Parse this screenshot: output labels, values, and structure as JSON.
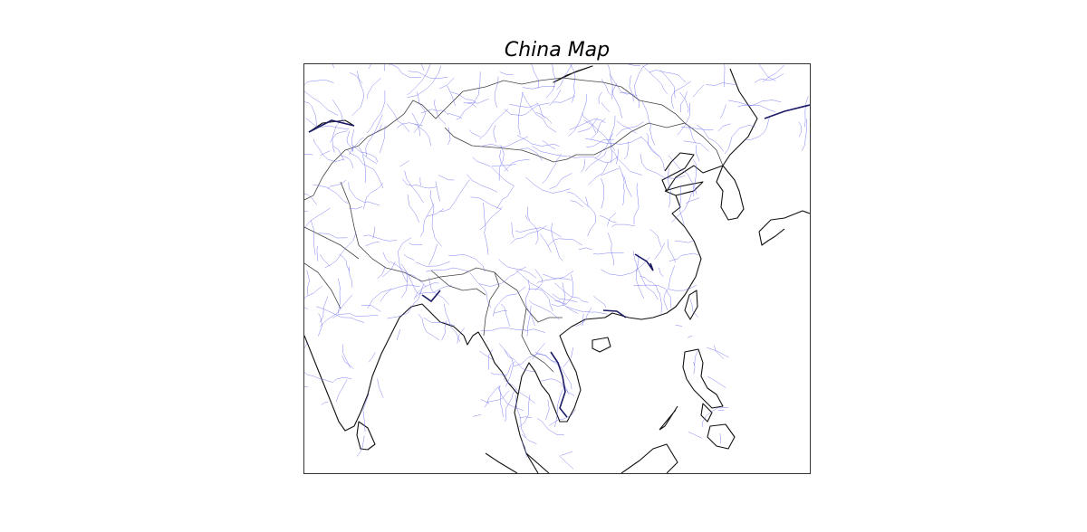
{
  "map": {
    "title": "China Map",
    "colors": {
      "coastline": "#111111",
      "borders": "#444444",
      "rivers": "#6a6af0",
      "frame": "#333333",
      "background": "#ffffff"
    }
  }
}
